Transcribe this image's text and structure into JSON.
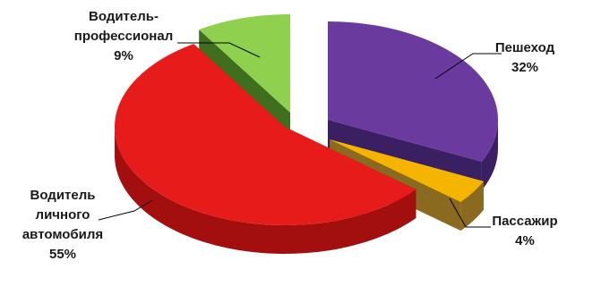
{
  "chart_data": {
    "type": "pie",
    "style": "3d-exploded",
    "title": "",
    "series": [
      {
        "slices": [
          {
            "label_lines": [
              "Пешеход"
            ],
            "percent_label": "32%",
            "value": 32,
            "color_top": "#6b3a9e",
            "color_side": "#3b1f63"
          },
          {
            "label_lines": [
              "Пассажир"
            ],
            "percent_label": "4%",
            "value": 4,
            "color_top": "#f4b400",
            "color_side": "#8a6a1f"
          },
          {
            "label_lines": [
              "Водитель",
              "личного",
              "автомобиля"
            ],
            "percent_label": "55%",
            "value": 55,
            "color_top": "#e81b1b",
            "color_side": "#a30f0f"
          },
          {
            "label_lines": [
              "Водитель-",
              "профессионал"
            ],
            "percent_label": "9%",
            "value": 9,
            "color_top": "#8fd14f",
            "color_side": "#3f6e1f"
          }
        ]
      }
    ]
  }
}
